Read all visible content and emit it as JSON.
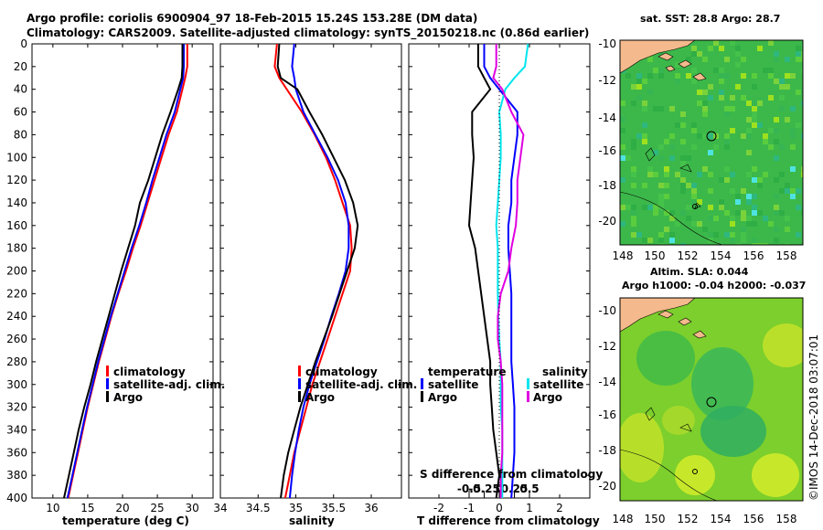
{
  "title": {
    "line1": "Argo profile: coriolis 6900904_97 18-Feb-2015 15.24S 153.28E (DM data)",
    "line2": "Climatology: CARS2009. Satellite-adjusted climatology: synTS_20150218.nc (0.86d earlier)"
  },
  "watermark": "©IMOS 14-Dec-2018 03:07:01",
  "colors": {
    "climatology": "#ff0000",
    "satellite": "#0000ff",
    "argo": "#000000",
    "satellite_s": "#00e5ee",
    "argo_s": "#e000e0"
  },
  "map_top": {
    "title": "sat. SST: 28.8 Argo: 28.7",
    "xticks": [
      "148",
      "150",
      "152",
      "154",
      "156",
      "158"
    ],
    "yticks": [
      "-10",
      "-12",
      "-14",
      "-16",
      "-18",
      "-20"
    ]
  },
  "map_bottom": {
    "title1": "Altim. SLA: 0.044",
    "title2": "Argo h1000: -0.04 h2000: -0.037",
    "xticks": [
      "148",
      "150",
      "152",
      "154",
      "156",
      "158"
    ],
    "yticks": [
      "-10",
      "-12",
      "-14",
      "-16",
      "-18",
      "-20"
    ]
  },
  "chart_data": [
    {
      "type": "line",
      "title": "",
      "xlabel": "temperature (deg C)",
      "ylabel": "",
      "xlim": [
        7,
        33
      ],
      "ylim": [
        400,
        0
      ],
      "xticks": [
        "10",
        "15",
        "20",
        "25",
        "30"
      ],
      "yticks": [
        "0",
        "20",
        "40",
        "60",
        "80",
        "100",
        "120",
        "140",
        "160",
        "180",
        "200",
        "220",
        "240",
        "260",
        "280",
        "300",
        "320",
        "340",
        "360",
        "380",
        "400"
      ],
      "legend": [
        "climatology",
        "satellite-adj. clim.",
        "Argo"
      ],
      "series": [
        {
          "name": "climatology",
          "color": "#ff0000",
          "x": [
            29.3,
            29.3,
            29.0,
            28.6,
            27.8,
            26.6,
            25.6,
            24.6,
            23.6,
            22.6,
            21.5,
            20.5,
            19.4,
            18.4,
            17.5,
            16.6,
            15.8,
            15.0,
            14.3,
            13.6,
            12.9,
            12.2
          ],
          "y": [
            0,
            20,
            30,
            40,
            60,
            80,
            100,
            120,
            140,
            160,
            180,
            200,
            220,
            240,
            260,
            280,
            300,
            320,
            340,
            360,
            380,
            400
          ]
        },
        {
          "name": "satellite-adj. clim.",
          "color": "#0000ff",
          "x": [
            28.8,
            28.8,
            28.7,
            28.3,
            27.5,
            26.3,
            25.3,
            24.3,
            23.4,
            22.4,
            21.3,
            20.3,
            19.3,
            18.3,
            17.4,
            16.5,
            15.7,
            14.9,
            14.2,
            13.5,
            12.8,
            12.1
          ],
          "y": [
            0,
            20,
            30,
            40,
            60,
            80,
            100,
            120,
            140,
            160,
            180,
            200,
            220,
            240,
            260,
            280,
            300,
            320,
            340,
            360,
            380,
            400
          ]
        },
        {
          "name": "Argo",
          "color": "#000000",
          "x": [
            28.6,
            28.6,
            28.5,
            28.0,
            26.9,
            25.7,
            24.7,
            23.7,
            22.5,
            21.8,
            20.8,
            19.8,
            18.9,
            18.0,
            17.1,
            16.2,
            15.4,
            14.5,
            13.7,
            13.0,
            12.3,
            11.6
          ],
          "y": [
            0,
            20,
            30,
            40,
            60,
            80,
            100,
            120,
            140,
            160,
            180,
            200,
            220,
            240,
            260,
            280,
            300,
            320,
            340,
            360,
            380,
            400
          ]
        }
      ]
    },
    {
      "type": "line",
      "xlabel": "salinity",
      "xlim": [
        34,
        36.4
      ],
      "ylim": [
        400,
        0
      ],
      "xticks": [
        "34",
        "34.5",
        "35",
        "35.5",
        "36"
      ],
      "legend": [
        "climatology",
        "satellite-adj. clim.",
        "Argo"
      ],
      "series": [
        {
          "name": "climatology",
          "color": "#ff0000",
          "x": [
            34.75,
            34.72,
            34.78,
            34.88,
            35.08,
            35.25,
            35.4,
            35.52,
            35.62,
            35.72,
            35.74,
            35.72,
            35.62,
            35.52,
            35.42,
            35.32,
            35.22,
            35.14,
            35.06,
            34.98,
            34.92,
            34.86
          ],
          "y": [
            0,
            20,
            30,
            40,
            60,
            80,
            100,
            120,
            140,
            160,
            180,
            200,
            220,
            240,
            260,
            280,
            300,
            320,
            340,
            360,
            380,
            400
          ]
        },
        {
          "name": "satellite-adj. clim.",
          "color": "#0000ff",
          "x": [
            34.98,
            34.95,
            34.98,
            35.0,
            35.1,
            35.26,
            35.42,
            35.56,
            35.66,
            35.7,
            35.7,
            35.66,
            35.57,
            35.47,
            35.38,
            35.28,
            35.18,
            35.1,
            35.04,
            34.99,
            34.95,
            34.92
          ],
          "y": [
            0,
            20,
            30,
            40,
            60,
            80,
            100,
            120,
            140,
            160,
            180,
            200,
            220,
            240,
            260,
            280,
            300,
            320,
            340,
            360,
            380,
            400
          ]
        },
        {
          "name": "Argo",
          "color": "#000000",
          "x": [
            34.78,
            34.76,
            34.8,
            35.02,
            35.18,
            35.35,
            35.5,
            35.65,
            35.76,
            35.82,
            35.78,
            35.68,
            35.58,
            35.48,
            35.37,
            35.26,
            35.16,
            35.06,
            34.98,
            34.9,
            34.84,
            34.8
          ],
          "y": [
            0,
            20,
            30,
            40,
            60,
            80,
            100,
            120,
            140,
            160,
            180,
            200,
            220,
            240,
            260,
            280,
            300,
            320,
            340,
            360,
            380,
            400
          ]
        }
      ]
    },
    {
      "type": "line",
      "xlabel": "T difference from climatology",
      "top_axis_label": "S difference from climatology",
      "xlim": [
        -3,
        3
      ],
      "ylim": [
        400,
        0
      ],
      "xticks": [
        "-2",
        "-1",
        "0",
        "1",
        "2"
      ],
      "s_xticks": [
        "-0.5",
        "-0.25",
        "0",
        "0.25",
        "0.5"
      ],
      "legend_t": {
        "header": "temperature",
        "items": [
          "satellite",
          "Argo"
        ]
      },
      "legend_s": {
        "header": "salinity",
        "items": [
          "satellite",
          "Argo"
        ]
      },
      "series": [
        {
          "name": "T satellite",
          "color": "#0000ff",
          "x": [
            -0.5,
            -0.5,
            -0.3,
            0.0,
            0.6,
            0.6,
            0.5,
            0.4,
            0.4,
            0.3,
            0.3,
            0.35,
            0.4,
            0.4,
            0.4,
            0.4,
            0.45,
            0.5,
            0.5,
            0.5,
            0.45,
            0.4
          ],
          "y": [
            0,
            20,
            30,
            40,
            60,
            80,
            100,
            120,
            140,
            160,
            180,
            200,
            220,
            240,
            260,
            280,
            300,
            320,
            340,
            360,
            380,
            400
          ]
        },
        {
          "name": "T Argo",
          "color": "#000000",
          "x": [
            -0.7,
            -0.7,
            -0.5,
            -0.3,
            -0.9,
            -0.9,
            -0.85,
            -0.9,
            -0.95,
            -1.0,
            -0.8,
            -0.7,
            -0.6,
            -0.5,
            -0.4,
            -0.3,
            -0.3,
            -0.25,
            -0.2,
            -0.1,
            0.0,
            -0.1
          ],
          "y": [
            0,
            20,
            30,
            40,
            60,
            80,
            100,
            120,
            140,
            160,
            180,
            200,
            220,
            240,
            260,
            280,
            300,
            320,
            340,
            360,
            380,
            400
          ]
        },
        {
          "name": "S satellite",
          "color": "#00e5ee",
          "x": [
            0.95,
            0.85,
            0.5,
            0.2,
            0.0,
            0.05,
            0.05,
            0.0,
            -0.05,
            -0.1,
            -0.05,
            -0.05,
            -0.05,
            -0.03,
            0.0,
            0.05,
            0.05,
            0.05,
            0.1,
            0.1,
            0.1,
            0.1
          ],
          "y": [
            0,
            20,
            30,
            40,
            60,
            80,
            100,
            120,
            140,
            160,
            180,
            200,
            220,
            240,
            260,
            280,
            300,
            320,
            340,
            360,
            380,
            400
          ]
        },
        {
          "name": "S Argo",
          "color": "#e000e0",
          "x": [
            -0.1,
            -0.1,
            -0.2,
            0.1,
            0.4,
            0.8,
            0.7,
            0.6,
            0.6,
            0.55,
            0.4,
            0.3,
            0.05,
            -0.05,
            -0.05,
            0.05,
            0.1,
            0.1,
            0.1,
            0.1,
            0.05,
            0.05
          ],
          "y": [
            0,
            20,
            30,
            40,
            60,
            80,
            100,
            120,
            140,
            160,
            180,
            200,
            220,
            240,
            260,
            280,
            300,
            320,
            340,
            360,
            380,
            400
          ]
        }
      ]
    }
  ]
}
